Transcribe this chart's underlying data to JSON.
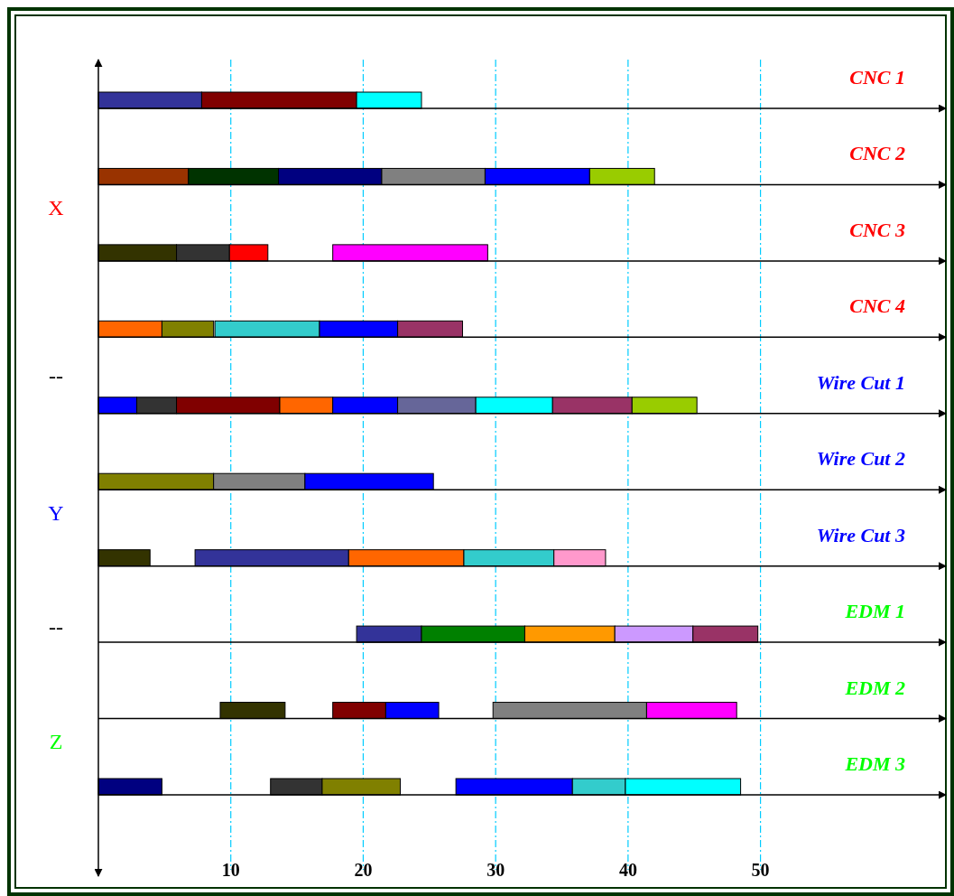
{
  "chart_data": {
    "type": "bar",
    "orientation": "horizontal",
    "categories": [
      "CNC 1",
      "CNC 2",
      "CNC 3",
      "CNC 4",
      "Wire Cut 1",
      "Wire Cut 2",
      "Wire Cut 3",
      "EDM 1",
      "EDM 2",
      "EDM 3"
    ],
    "series": [
      {
        "base": [
          0,
          0,
          0,
          0,
          0,
          0,
          0,
          19.5,
          9.2,
          0
        ],
        "values": [
          7.8,
          6.8,
          5.9,
          4.8,
          2.9,
          8.7,
          3.9,
          4.9,
          4.9,
          4.8
        ],
        "colors": [
          "#333399",
          "#993300",
          "#333300",
          "#ff6600",
          "#0000ff",
          "#808000",
          "#333300",
          "#333399",
          "#333300",
          "#000080"
        ]
      },
      {
        "base": [
          7.8,
          6.8,
          5.9,
          4.8,
          2.9,
          8.7,
          7.3,
          24.4,
          17.7,
          13
        ],
        "values": [
          11.7,
          6.8,
          4,
          3.9,
          3,
          6.9,
          11.6,
          7.8,
          4,
          3.9
        ],
        "colors": [
          "#800000",
          "#003300",
          "#333333",
          "#808000",
          "#333333",
          "#808080",
          "#333399",
          "#008000",
          "#800000",
          "#333333"
        ]
      },
      {
        "base": [
          19.5,
          13.6,
          9.9,
          8.8,
          5.9,
          15.6,
          18.9,
          32.2,
          21.7,
          16.9
        ],
        "values": [
          4.9,
          7.8,
          2.9,
          7.9,
          7.8,
          9.7,
          8.7,
          6.8,
          4,
          5.9
        ],
        "colors": [
          "#00ffff",
          "#000080",
          "#ff0000",
          "#33cccc",
          "#800000",
          "#0000ff",
          "#ff6600",
          "#ff9900",
          "#0000ff",
          "#808000"
        ]
      },
      {
        "base": [
          null,
          21.4,
          17.7,
          16.7,
          13.7,
          null,
          27.6,
          39,
          29.8,
          27
        ],
        "values": [
          null,
          7.8,
          11.7,
          5.9,
          4,
          null,
          6.8,
          5.9,
          11.6,
          8.8
        ],
        "colors": [
          null,
          "#808080",
          "#ff00ff",
          "#0000ff",
          "#ff6600",
          null,
          "#33cccc",
          "#cc99ff",
          "#808080",
          "#0000ff"
        ]
      },
      {
        "base": [
          null,
          29.2,
          null,
          22.6,
          17.7,
          null,
          34.4,
          44.9,
          41.4,
          35.8
        ],
        "values": [
          null,
          7.9,
          null,
          4.9,
          4.9,
          null,
          3.9,
          4.9,
          6.8,
          4
        ],
        "colors": [
          null,
          "#0000ff",
          null,
          "#993366",
          "#0000ff",
          null,
          "#ff99cc",
          "#993366",
          "#ff00ff",
          "#33cccc"
        ]
      },
      {
        "base": [
          null,
          37.1,
          null,
          null,
          22.6,
          null,
          null,
          null,
          null,
          39.8
        ],
        "values": [
          null,
          4.9,
          null,
          null,
          5.9,
          null,
          null,
          null,
          null,
          8.7
        ],
        "colors": [
          null,
          "#99cc00",
          null,
          null,
          "#666699",
          null,
          null,
          null,
          null,
          "#00ffff"
        ]
      },
      {
        "base": [
          null,
          null,
          null,
          null,
          28.5,
          null,
          null,
          null,
          null,
          null
        ],
        "values": [
          null,
          null,
          null,
          null,
          5.8,
          null,
          null,
          null,
          null,
          null
        ],
        "colors": [
          null,
          null,
          null,
          null,
          "#00ffff",
          null,
          null,
          null,
          null,
          null
        ]
      },
      {
        "base": [
          null,
          null,
          null,
          null,
          34.3,
          null,
          null,
          null,
          null,
          null
        ],
        "values": [
          null,
          null,
          null,
          null,
          6,
          null,
          null,
          null,
          null,
          null
        ],
        "colors": [
          null,
          null,
          null,
          null,
          "#993366",
          null,
          null,
          null,
          null,
          null
        ]
      },
      {
        "base": [
          null,
          null,
          null,
          null,
          40.3,
          null,
          null,
          null,
          null,
          null
        ],
        "values": [
          null,
          null,
          null,
          null,
          4.9,
          null,
          null,
          null,
          null,
          null
        ],
        "colors": [
          null,
          null,
          null,
          null,
          "#99cc00",
          null,
          null,
          null,
          null,
          null
        ]
      }
    ],
    "xlim": [
      0,
      64
    ],
    "xticks": [
      10,
      20,
      30,
      40,
      50
    ],
    "grid": "x",
    "annotations": [
      "X",
      "--",
      "Y",
      "--",
      "Z"
    ]
  }
}
